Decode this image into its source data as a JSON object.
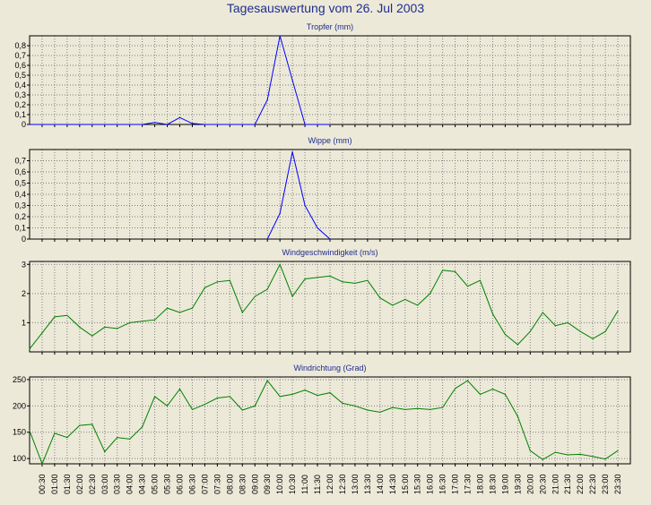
{
  "title": "Tagesauswertung vom 26. Jul 2003",
  "x_ticks": [
    "00:30",
    "01:00",
    "01:30",
    "02:00",
    "02:30",
    "03:00",
    "03:30",
    "04:00",
    "04:30",
    "05:00",
    "05:30",
    "06:00",
    "06:30",
    "07:00",
    "07:30",
    "08:00",
    "08:30",
    "09:00",
    "09:30",
    "10:00",
    "10:30",
    "11:00",
    "11:30",
    "12:00",
    "12:30",
    "13:00",
    "13:30",
    "14:00",
    "14:30",
    "15:00",
    "15:30",
    "16:00",
    "16:30",
    "17:00",
    "17:30",
    "18:00",
    "18:30",
    "19:00",
    "19:30",
    "20:00",
    "20:30",
    "21:00",
    "21:30",
    "22:00",
    "22:30",
    "23:00",
    "23:30"
  ],
  "colors": {
    "background": "#ece9d8",
    "title": "#1f2d8f",
    "rain": "#0000ff",
    "wind": "#008000",
    "grid": "#808080"
  },
  "chart_data": [
    {
      "type": "line",
      "title": "Tropfer (mm)",
      "ylim": [
        0,
        0.9
      ],
      "y_ticks": [
        0,
        0.1,
        0.2,
        0.3,
        0.4,
        0.5,
        0.6,
        0.7,
        0.8
      ],
      "y_tick_labels": [
        "0",
        "0,1",
        "0,2",
        "0,3",
        "0,4",
        "0,5",
        "0,6",
        "0,7",
        "0,8"
      ],
      "grid": true,
      "x": [
        "00:00",
        "00:30",
        "01:00",
        "01:30",
        "02:00",
        "02:30",
        "03:00",
        "03:30",
        "04:00",
        "04:30",
        "05:00",
        "05:30",
        "06:00",
        "06:30",
        "07:00",
        "07:30",
        "08:00",
        "08:30",
        "09:00",
        "09:30",
        "10:00",
        "10:30",
        "11:00",
        "11:30",
        "12:00"
      ],
      "series": [
        {
          "color": "#0000ff",
          "values": [
            0,
            0,
            0,
            0,
            0,
            0,
            0,
            0,
            0,
            0,
            0.02,
            0,
            0.07,
            0.01,
            0,
            0,
            0,
            0,
            0,
            0.25,
            0.9,
            0.45,
            0,
            0,
            0
          ]
        }
      ]
    },
    {
      "type": "line",
      "title": "Wippe (mm)",
      "ylim": [
        0,
        0.8
      ],
      "y_ticks": [
        0,
        0.1,
        0.2,
        0.3,
        0.4,
        0.5,
        0.6,
        0.7
      ],
      "y_tick_labels": [
        "0",
        "0,1",
        "0,2",
        "0,3",
        "0,4",
        "0,5",
        "0,6",
        "0,7"
      ],
      "grid": true,
      "x": [
        "09:30",
        "10:00",
        "10:30",
        "11:00",
        "11:30",
        "12:00"
      ],
      "series": [
        {
          "color": "#0000ff",
          "values": [
            0,
            0.23,
            0.78,
            0.3,
            0.1,
            0
          ]
        }
      ]
    },
    {
      "type": "line",
      "title": "Windgeschwindigkeit (m/s)",
      "ylim": [
        0,
        3.1
      ],
      "y_ticks": [
        1,
        2,
        3
      ],
      "y_tick_labels": [
        "1",
        "2",
        "3"
      ],
      "grid": true,
      "x": [
        "00:00",
        "00:30",
        "01:00",
        "01:30",
        "02:00",
        "02:30",
        "03:00",
        "03:30",
        "04:00",
        "04:30",
        "05:00",
        "05:30",
        "06:00",
        "06:30",
        "07:00",
        "07:30",
        "08:00",
        "08:30",
        "09:00",
        "09:30",
        "10:00",
        "10:30",
        "11:00",
        "11:30",
        "12:00",
        "12:30",
        "13:00",
        "13:30",
        "14:00",
        "14:30",
        "15:00",
        "15:30",
        "16:00",
        "16:30",
        "17:00",
        "17:30",
        "18:00",
        "18:30",
        "19:00",
        "19:30",
        "20:00",
        "20:30",
        "21:00",
        "21:30",
        "22:00",
        "22:30",
        "23:00",
        "23:30"
      ],
      "series": [
        {
          "color": "#008000",
          "values": [
            0.1,
            0.65,
            1.2,
            1.25,
            0.85,
            0.55,
            0.85,
            0.8,
            1.0,
            1.05,
            1.1,
            1.5,
            1.35,
            1.5,
            2.2,
            2.4,
            2.45,
            1.35,
            1.9,
            2.15,
            3.0,
            1.9,
            2.5,
            2.55,
            2.6,
            2.4,
            2.35,
            2.45,
            1.85,
            1.6,
            1.8,
            1.6,
            2.0,
            2.8,
            2.75,
            2.25,
            2.45,
            1.3,
            0.6,
            0.25,
            0.7,
            1.35,
            0.9,
            1.0,
            0.7,
            0.45,
            0.7,
            1.4
          ]
        }
      ]
    },
    {
      "type": "line",
      "title": "Windrichtung (Grad)",
      "ylim": [
        90,
        255
      ],
      "y_ticks": [
        100,
        150,
        200,
        250
      ],
      "y_tick_labels": [
        "100",
        "150",
        "200",
        "250"
      ],
      "grid": true,
      "x": [
        "00:00",
        "00:30",
        "01:00",
        "01:30",
        "02:00",
        "02:30",
        "03:00",
        "03:30",
        "04:00",
        "04:30",
        "05:00",
        "05:30",
        "06:00",
        "06:30",
        "07:00",
        "07:30",
        "08:00",
        "08:30",
        "09:00",
        "09:30",
        "10:00",
        "10:30",
        "11:00",
        "11:30",
        "12:00",
        "12:30",
        "13:00",
        "13:30",
        "14:00",
        "14:30",
        "15:00",
        "15:30",
        "16:00",
        "16:30",
        "17:00",
        "17:30",
        "18:00",
        "18:30",
        "19:00",
        "19:30",
        "20:00",
        "20:30",
        "21:00",
        "21:30",
        "22:00",
        "22:30",
        "23:00",
        "23:30"
      ],
      "series": [
        {
          "color": "#008000",
          "values": [
            153,
            90,
            148,
            140,
            163,
            165,
            113,
            140,
            137,
            160,
            218,
            200,
            232,
            193,
            203,
            215,
            218,
            192,
            200,
            248,
            218,
            222,
            230,
            220,
            225,
            205,
            200,
            192,
            188,
            197,
            193,
            195,
            193,
            197,
            233,
            248,
            222,
            232,
            222,
            180,
            115,
            98,
            112,
            107,
            108,
            104,
            99,
            115
          ]
        }
      ]
    }
  ]
}
